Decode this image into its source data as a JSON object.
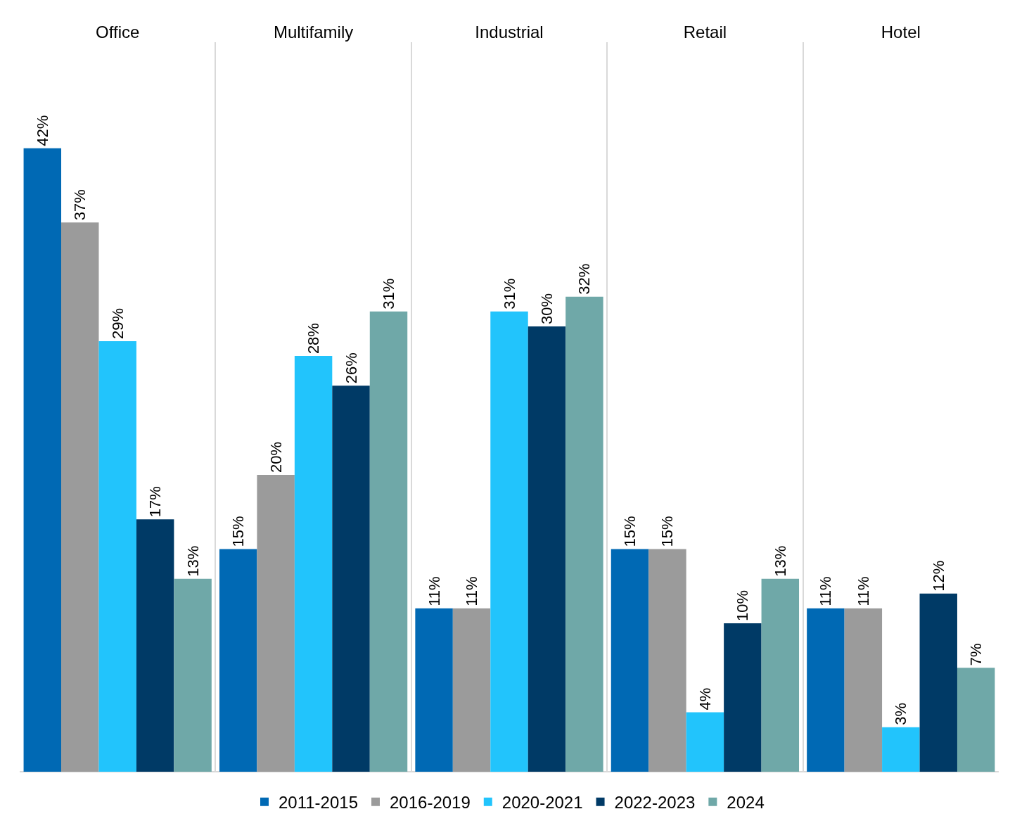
{
  "chart_data": {
    "type": "bar",
    "categories": [
      "Office",
      "Multifamily",
      "Industrial",
      "Retail",
      "Hotel"
    ],
    "series": [
      {
        "name": "2011-2015",
        "color": "#0069b4",
        "values": [
          42,
          15,
          11,
          15,
          11
        ],
        "value_labels": [
          "42%",
          "15%",
          "11%",
          "15%",
          "11%"
        ]
      },
      {
        "name": "2016-2019",
        "color": "#9b9b9b",
        "values": [
          37,
          20,
          11,
          15,
          11
        ],
        "value_labels": [
          "37%",
          "20%",
          "11%",
          "15%",
          "11%"
        ]
      },
      {
        "name": "2020-2021",
        "color": "#22c4fc",
        "values": [
          29,
          28,
          31,
          4,
          3
        ],
        "value_labels": [
          "29%",
          "28%",
          "31%",
          "4%",
          "3%"
        ]
      },
      {
        "name": "2022-2023",
        "color": "#003a66",
        "values": [
          17,
          26,
          30,
          10,
          12
        ],
        "value_labels": [
          "17%",
          "26%",
          "30%",
          "10%",
          "12%"
        ]
      },
      {
        "name": "2024",
        "color": "#6fa8a8",
        "values": [
          13,
          31,
          32,
          13,
          7
        ],
        "value_labels": [
          "13%",
          "31%",
          "32%",
          "13%",
          "7%"
        ]
      }
    ],
    "grid": "x",
    "legend": "bottom"
  }
}
